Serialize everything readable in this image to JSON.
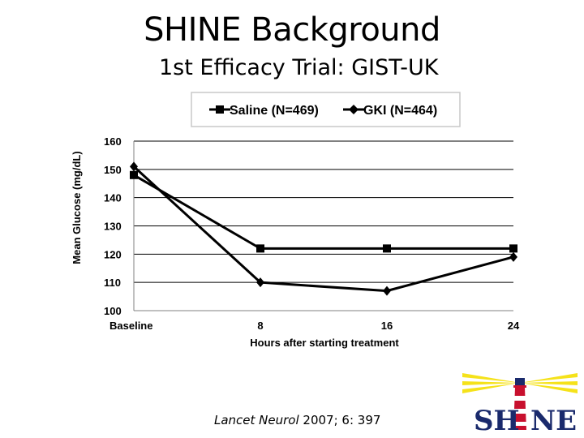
{
  "slide": {
    "title": "SHINE Background",
    "subtitle": "1st Efficacy Trial: GIST-UK",
    "citation_source": "Lancet Neurol",
    "citation_ref": " 2007; 6: 397",
    "logo_text": "SHINE"
  },
  "chart_data": {
    "type": "line",
    "title": "",
    "xlabel": "Hours after starting treatment",
    "ylabel": "Mean Glucose (mg/dL)",
    "categories": [
      "Baseline",
      "8",
      "16",
      "24"
    ],
    "x": [
      0,
      8,
      16,
      24
    ],
    "xlim": [
      0,
      24
    ],
    "ylim": [
      100,
      160
    ],
    "yticks": [
      100,
      110,
      120,
      130,
      140,
      150,
      160
    ],
    "grid": "horizontal",
    "legend_position": "top",
    "series": [
      {
        "name": "Saline (N=469)",
        "marker": "square",
        "color": "#000000",
        "values": [
          148,
          122,
          122,
          122
        ]
      },
      {
        "name": "GKI (N=464)",
        "marker": "diamond",
        "color": "#000000",
        "values": [
          151,
          110,
          107,
          119
        ]
      }
    ]
  },
  "colors": {
    "logo_rays": "#f5e21a",
    "logo_red": "#c8102e",
    "logo_navy": "#1a2a6c"
  }
}
